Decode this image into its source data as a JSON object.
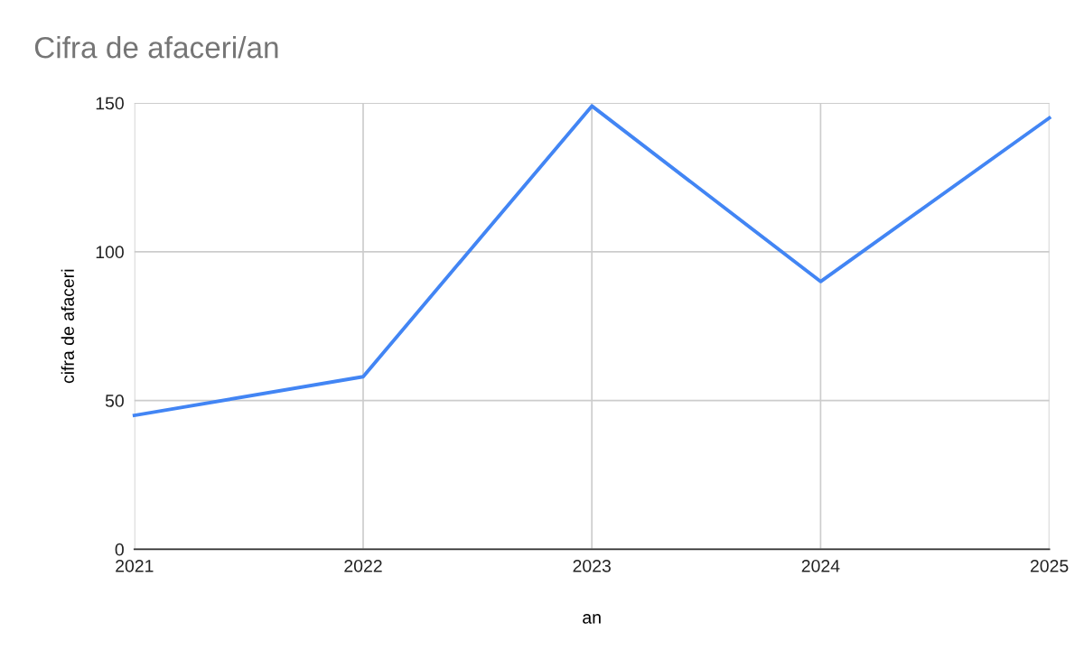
{
  "chart_data": {
    "type": "line",
    "title": "Cifra de afaceri/an",
    "xlabel": "an",
    "ylabel": "cifra de afaceri",
    "x": [
      2021,
      2022,
      2023,
      2024,
      2025
    ],
    "series": [
      {
        "color": "#4285f4",
        "values": [
          45,
          58,
          149,
          90,
          145
        ]
      }
    ],
    "xlim": [
      2021,
      2025
    ],
    "xticks": [
      2021,
      2022,
      2023,
      2024,
      2025
    ],
    "ylim": [
      0,
      150
    ],
    "yticks": [
      0,
      50,
      100,
      150
    ],
    "grid": true,
    "legend": false,
    "marker": "none",
    "line_style": "solid"
  }
}
